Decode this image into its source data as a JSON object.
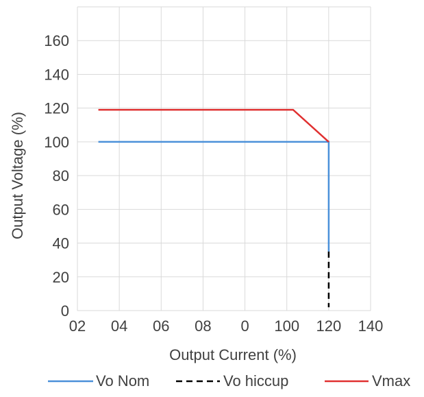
{
  "chart_data": {
    "type": "line",
    "xlabel": "Output Current (%)",
    "ylabel": "Output Voltage (%)",
    "x_tick_labels": [
      "02",
      "04",
      "06",
      "08",
      "0",
      "100",
      "120",
      "140"
    ],
    "y_tick_labels": [
      "0",
      "20",
      "40",
      "60",
      "80",
      "100",
      "120",
      "140",
      "160"
    ],
    "xlim": [
      0,
      140
    ],
    "ylim": [
      0,
      180
    ],
    "grid": true,
    "legend_position": "bottom",
    "series": [
      {
        "name": "Vo Nom",
        "color": "#4a90d9",
        "dash": "solid",
        "points": [
          [
            10,
            100
          ],
          [
            120,
            100
          ],
          [
            120,
            35
          ]
        ]
      },
      {
        "name": "Vo hiccup",
        "color": "#000000",
        "dash": "dashed",
        "points": [
          [
            120,
            35
          ],
          [
            120,
            2
          ]
        ]
      },
      {
        "name": "Vmax",
        "color": "#e03030",
        "dash": "solid",
        "points": [
          [
            10,
            119
          ],
          [
            103,
            119
          ],
          [
            120,
            100
          ]
        ]
      }
    ]
  }
}
